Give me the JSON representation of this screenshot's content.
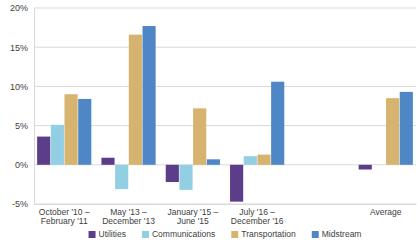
{
  "chart_data": {
    "type": "bar",
    "categories": [
      "October '10 – February '11",
      "May '13 – December '13",
      "January '15 – June '15",
      "July '16 – December '16",
      null,
      "Average"
    ],
    "series": [
      {
        "name": "Utilities",
        "color": "#5c3d8a",
        "values": [
          3.6,
          0.9,
          -2.2,
          -4.7,
          null,
          -0.6
        ]
      },
      {
        "name": "Communications",
        "color": "#92cfe3",
        "values": [
          5.1,
          -3.1,
          -3.2,
          1.1,
          null,
          0
        ]
      },
      {
        "name": "Transportation",
        "color": "#d6b36e",
        "values": [
          9.0,
          16.6,
          7.2,
          1.3,
          null,
          8.5
        ]
      },
      {
        "name": "Midstream",
        "color": "#4f87c6",
        "values": [
          8.4,
          17.7,
          0.7,
          10.6,
          null,
          9.3
        ]
      }
    ],
    "ylim": [
      -5,
      20
    ],
    "yticks": [
      {
        "value": -5,
        "label": "-5%"
      },
      {
        "value": 0,
        "label": "0%"
      },
      {
        "value": 5,
        "label": "5%"
      },
      {
        "value": 10,
        "label": "10%"
      },
      {
        "value": 15,
        "label": "15%"
      },
      {
        "value": 20,
        "label": "20%"
      }
    ],
    "grid": true,
    "legend": "bottom"
  }
}
